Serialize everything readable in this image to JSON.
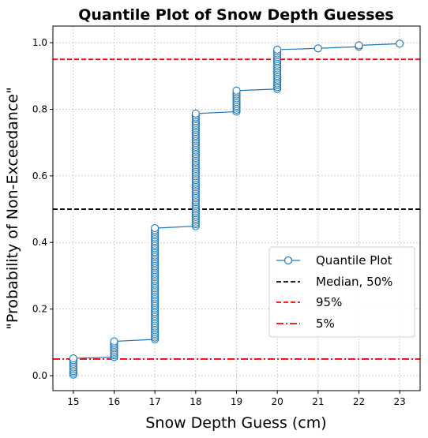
{
  "chart_data": {
    "type": "line",
    "title": "Quantile Plot of Snow Depth Guesses",
    "xlabel": "Snow Depth Guess (cm)",
    "ylabel": "\"Probability of Non-Exceedance\"",
    "xlim": [
      14.5,
      23.5
    ],
    "ylim": [
      -0.045,
      1.05
    ],
    "xticks": [
      15,
      16,
      17,
      18,
      19,
      20,
      21,
      22,
      23
    ],
    "yticks": [
      0.0,
      0.2,
      0.4,
      0.6,
      0.8,
      1.0
    ],
    "grid": true,
    "legend_position": "center-right",
    "series": [
      {
        "name": "Quantile Plot",
        "color": "#1f77b4",
        "marker": "open-circle",
        "groups": [
          {
            "x": 15,
            "p_min": 0.003,
            "p_max": 0.052
          },
          {
            "x": 16,
            "p_min": 0.056,
            "p_max": 0.103
          },
          {
            "x": 17,
            "p_min": 0.109,
            "p_max": 0.443
          },
          {
            "x": 18,
            "p_min": 0.449,
            "p_max": 0.787
          },
          {
            "x": 19,
            "p_min": 0.793,
            "p_max": 0.856
          },
          {
            "x": 20,
            "p_min": 0.861,
            "p_max": 0.979
          },
          {
            "x": 21,
            "p_min": 0.983,
            "p_max": 0.983
          },
          {
            "x": 22,
            "p_min": 0.988,
            "p_max": 0.992
          },
          {
            "x": 23,
            "p_min": 0.997,
            "p_max": 0.997
          }
        ]
      }
    ],
    "reference_lines": [
      {
        "name": "Median, 50%",
        "y": 0.5,
        "color": "#000000",
        "style": "dashed"
      },
      {
        "name": "95%",
        "y": 0.95,
        "color": "#ff0000",
        "style": "dashed"
      },
      {
        "name": "5%",
        "y": 0.05,
        "color": "#ff0000",
        "style": "dashdot"
      }
    ]
  }
}
